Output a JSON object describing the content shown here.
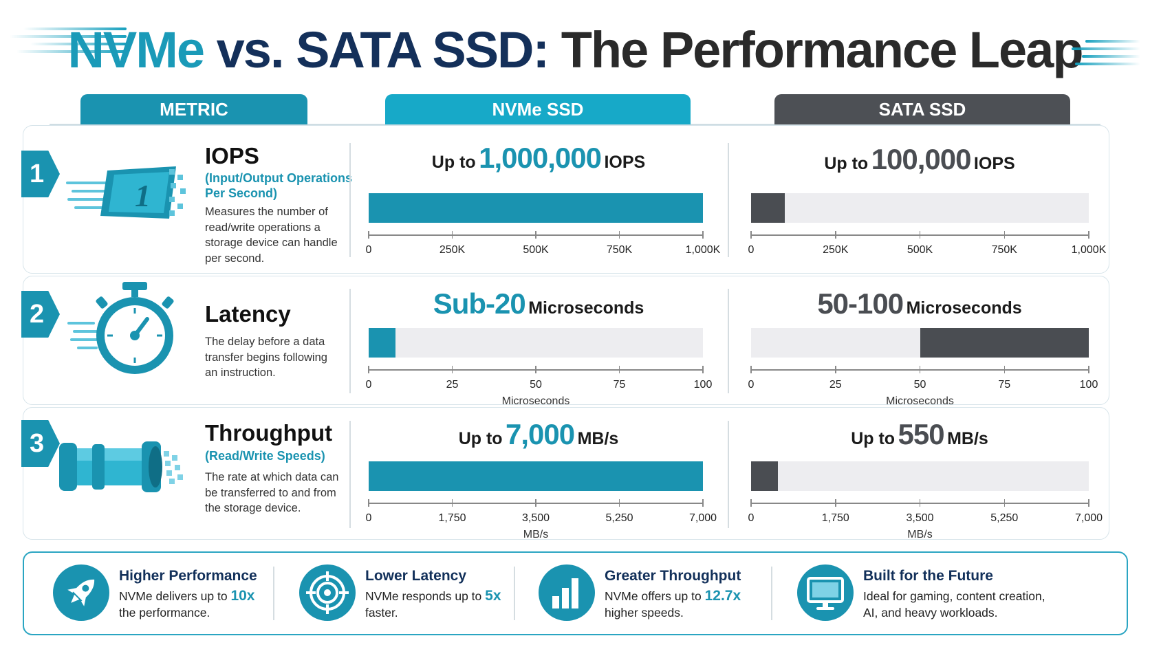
{
  "title": {
    "part1": "NVMe",
    "part2": "vs. SATA SSD:",
    "part3": "The Performance Leap"
  },
  "columns": {
    "metric": "METRIC",
    "nvme": "NVMe SSD",
    "sata": "SATA SSD"
  },
  "colors": {
    "nvme_accent": "#1a93b0",
    "nvme_header": "#17a9c8",
    "metric_header": "#1a93b0",
    "sata_dark": "#4a4d52",
    "track": "#ededf0",
    "navy": "#12305a"
  },
  "rows": [
    {
      "number": "1",
      "icon": "iops-chip-icon",
      "name": "IOPS",
      "subtitle_line1": "(Input/Output Operations",
      "subtitle_line2": "Per Second)",
      "description_lines": [
        "Measures the number of",
        "read/write operations a",
        "storage device can handle",
        "per second."
      ]
    },
    {
      "number": "2",
      "icon": "stopwatch-icon",
      "name": "Latency",
      "subtitle_line1": "",
      "subtitle_line2": "",
      "description_lines": [
        "The delay before a data",
        "transfer begins following",
        "an instruction."
      ]
    },
    {
      "number": "3",
      "icon": "pipe-data-icon",
      "name": "Throughput",
      "subtitle_line1": "(Read/Write Speeds)",
      "subtitle_line2": "",
      "description_lines": [
        "The rate at which data can",
        "be transferred to and from",
        "the storage device."
      ]
    }
  ],
  "chart_data": [
    {
      "type": "bar",
      "metric": "IOPS",
      "xlim": [
        0,
        1000000
      ],
      "tick_labels": [
        "0",
        "250K",
        "500K",
        "750K",
        "1,000K"
      ],
      "axis_unit": "",
      "series": [
        {
          "name": "NVMe SSD",
          "pre": "Up to",
          "value_label": "1,000,000",
          "post": "IOPS",
          "range": [
            0,
            1000000
          ]
        },
        {
          "name": "SATA SSD",
          "pre": "Up to",
          "value_label": "100,000",
          "post": "IOPS",
          "range": [
            0,
            100000
          ]
        }
      ]
    },
    {
      "type": "bar",
      "metric": "Latency",
      "xlim": [
        0,
        100
      ],
      "tick_labels": [
        "0",
        "25",
        "50",
        "75",
        "100"
      ],
      "axis_unit": "Microseconds",
      "series": [
        {
          "name": "NVMe SSD",
          "pre": "",
          "value_label": "Sub-20",
          "post": "Microseconds",
          "range": [
            0,
            8
          ]
        },
        {
          "name": "SATA SSD",
          "pre": "",
          "value_label": "50-100",
          "post": "Microseconds",
          "range": [
            50,
            100
          ]
        }
      ]
    },
    {
      "type": "bar",
      "metric": "Throughput",
      "xlim": [
        0,
        7000
      ],
      "tick_labels": [
        "0",
        "1,750",
        "3,500",
        "5,250",
        "7,000"
      ],
      "axis_unit": "MB/s",
      "series": [
        {
          "name": "NVMe SSD",
          "pre": "Up to",
          "value_label": "7,000",
          "post": "MB/s",
          "range": [
            0,
            7000
          ]
        },
        {
          "name": "SATA SSD",
          "pre": "Up to",
          "value_label": "550",
          "post": "MB/s",
          "range": [
            0,
            550
          ]
        }
      ]
    }
  ],
  "summary": [
    {
      "icon": "rocket-icon",
      "title": "Higher Performance",
      "line1_pre": "NVMe delivers up to",
      "highlight": "10x",
      "line2": "the performance."
    },
    {
      "icon": "target-icon",
      "title": "Lower Latency",
      "line1_pre": "NVMe responds up to",
      "highlight": "5x",
      "line2": "faster."
    },
    {
      "icon": "bar-chart-icon",
      "title": "Greater Throughput",
      "line1_pre": "NVMe offers up to",
      "highlight": "12.7x",
      "line2": "higher speeds."
    },
    {
      "icon": "monitor-icon",
      "title": "Built for the Future",
      "line1_pre": "Ideal for gaming, content creation,",
      "highlight": "",
      "line2": "AI, and heavy workloads."
    }
  ]
}
